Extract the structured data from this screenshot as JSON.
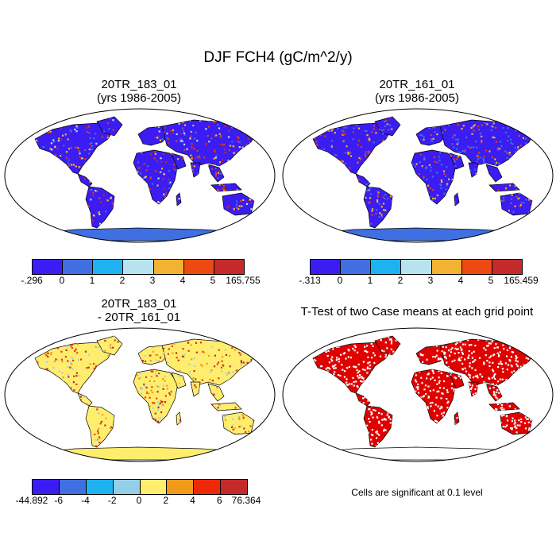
{
  "title": "DJF FCH4 (gC/m^2/y)",
  "panels": [
    {
      "id": "p1",
      "title_line1": "20TR_183_01",
      "title_line2": "(yrs 1986-2005)",
      "ocean": "#ffffff",
      "land": "#3b1cf2",
      "speckle": [
        "#3f6fe0",
        "#f2b233",
        "#e83a14",
        "#c42a2a",
        "#b7e3f0"
      ],
      "antarctica": "#3f6fe0"
    },
    {
      "id": "p2",
      "title_line1": "20TR_161_01",
      "title_line2": "(yrs 1986-2005)",
      "ocean": "#ffffff",
      "land": "#3b1cf2",
      "speckle": [
        "#3f6fe0",
        "#3f6fe0",
        "#f2b233",
        "#e83a14"
      ],
      "antarctica": "#3f6fe0"
    },
    {
      "id": "p3",
      "title_line1": "20TR_183_01",
      "title_line2": "- 20TR_161_01",
      "ocean": "#ffffff",
      "land": "#ffee6e",
      "speckle": [
        "#a6cfea",
        "#f29a1a",
        "#e83a14",
        "#c42a2a"
      ],
      "antarctica": "#ffee6e"
    },
    {
      "id": "p4",
      "title_line1": "T-Test of two Case means at each grid point",
      "title_line2": "",
      "ocean": "#ffffff",
      "land": "#e00000",
      "speckle": [
        "#ffffff"
      ],
      "antarctica": "#ffffff"
    }
  ],
  "colorbars": [
    {
      "id": "cb1",
      "colors": [
        "#3b1cf2",
        "#3f6fe0",
        "#1fb2f0",
        "#b7e3f0",
        "#f2b233",
        "#ec4a12",
        "#c42a2a"
      ],
      "labels": [
        "-.296",
        "0",
        "1",
        "2",
        "3",
        "4",
        "5",
        "165.755"
      ]
    },
    {
      "id": "cb2",
      "colors": [
        "#3b1cf2",
        "#3f6fe0",
        "#1fb2f0",
        "#b7e3f0",
        "#f2b233",
        "#ec4a12",
        "#c42a2a"
      ],
      "labels": [
        "-.313",
        "0",
        "1",
        "2",
        "3",
        "4",
        "5",
        "165.459"
      ]
    },
    {
      "id": "cb3",
      "colors": [
        "#3b1cf2",
        "#3f6fe0",
        "#1fb2f0",
        "#93cfe8",
        "#ffee6e",
        "#f29a1a",
        "#f0280a",
        "#c42a2a"
      ],
      "labels": [
        "-44.892",
        "-6",
        "-4",
        "-2",
        "0",
        "2",
        "4",
        "6",
        "76.364"
      ]
    }
  ],
  "note": "Cells are significant at 0.1 level"
}
